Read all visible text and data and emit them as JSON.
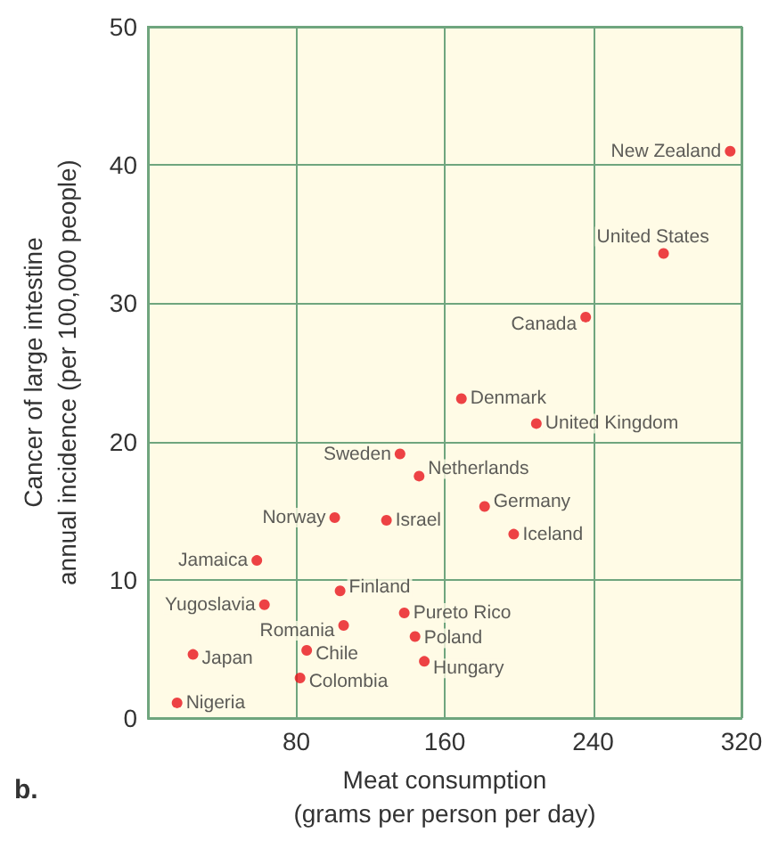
{
  "chart_data": {
    "type": "scatter",
    "xlabel": "Meat consumption\n(grams per person per day)",
    "ylabel": "Cancer of large intestine\nannual incidence (per 100,000 people)",
    "x": [
      313.9,
      278,
      236,
      169,
      209.4,
      135.9,
      146.2,
      181.5,
      197.2,
      100.7,
      128.6,
      58.7,
      62.8,
      103.6,
      105.5,
      138.2,
      144,
      149,
      24.3,
      85.6,
      82,
      15.7
    ],
    "values": [
      41.0,
      33.6,
      29.0,
      23.1,
      21.3,
      19.1,
      17.5,
      15.3,
      13.3,
      14.5,
      14.3,
      11.4,
      8.2,
      9.2,
      6.7,
      7.6,
      5.9,
      4.1,
      4.6,
      4.9,
      2.9,
      1.1
    ],
    "color": "#e8141c",
    "marker": "circle",
    "grid": true,
    "xlim": [
      0,
      320
    ],
    "xticks": [
      {
        "value": 0,
        "label": null
      },
      80,
      160,
      240,
      320
    ],
    "ylim": [
      0,
      50
    ],
    "yticks": [
      0,
      10,
      20,
      30,
      40,
      50
    ],
    "annotations": [
      {
        "text": "New Zealand",
        "x": 313.9,
        "y": 41.0
      },
      {
        "text": "United States",
        "x": 278,
        "y": 33.6
      },
      {
        "text": "Canada",
        "x": 236,
        "y": 29.0
      },
      {
        "text": "Denmark",
        "x": 169,
        "y": 23.1
      },
      {
        "text": "United Kingdom",
        "x": 209.4,
        "y": 21.3
      },
      {
        "text": "Sweden",
        "x": 135.9,
        "y": 19.1
      },
      {
        "text": "Netherlands",
        "x": 146.2,
        "y": 17.5
      },
      {
        "text": "Germany",
        "x": 181.5,
        "y": 15.3
      },
      {
        "text": "Iceland",
        "x": 197.2,
        "y": 13.3
      },
      {
        "text": "Norway",
        "x": 100.7,
        "y": 14.5
      },
      {
        "text": "Israel",
        "x": 128.6,
        "y": 14.3
      },
      {
        "text": "Jamaica",
        "x": 58.7,
        "y": 11.4
      },
      {
        "text": "Yugoslavia",
        "x": 62.8,
        "y": 8.2
      },
      {
        "text": "Finland",
        "x": 103.6,
        "y": 9.2
      },
      {
        "text": "Romania",
        "x": 105.5,
        "y": 6.7
      },
      {
        "text": "Pureto Rico",
        "x": 138.2,
        "y": 7.6
      },
      {
        "text": "Poland",
        "x": 144,
        "y": 5.9
      },
      {
        "text": "Hungary",
        "x": 149,
        "y": 4.1
      },
      {
        "text": "Japan",
        "x": 24.3,
        "y": 4.6
      },
      {
        "text": "Chile",
        "x": 85.6,
        "y": 4.9
      },
      {
        "text": "Colombia",
        "x": 82,
        "y": 2.9
      },
      {
        "text": "Nigeria",
        "x": 15.7,
        "y": 1.1
      },
      "b."
    ]
  }
}
